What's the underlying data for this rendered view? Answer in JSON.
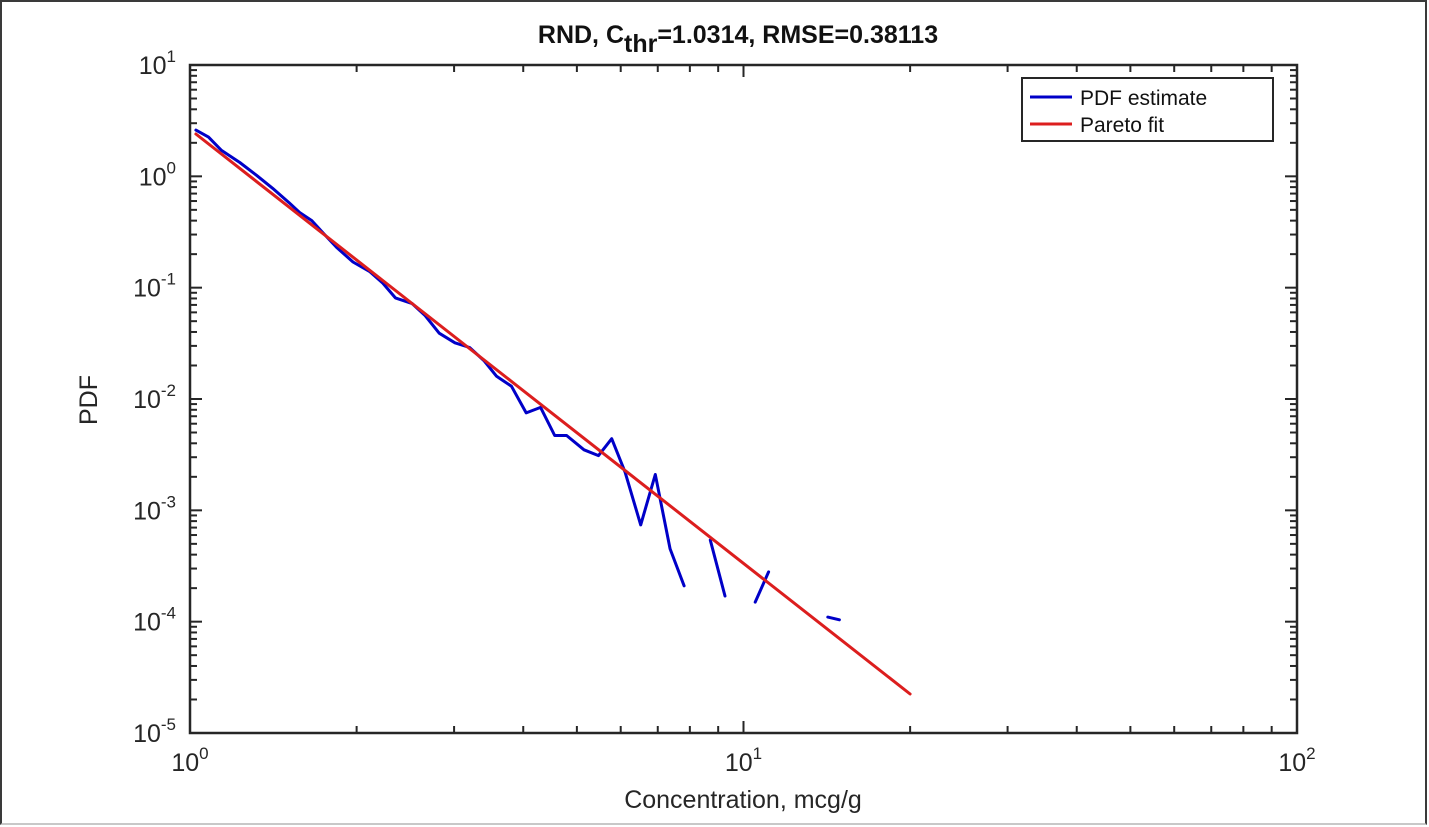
{
  "figure": {
    "title_main": "RND, C",
    "title_sub": "thr",
    "title_rest": "=1.0314, RMSE=0.38113",
    "xlabel": "Concentration, mcg/g",
    "ylabel": "PDF",
    "colors": {
      "pdf_estimate": "#0000c8",
      "pareto_fit": "#dc1e1e",
      "axis": "#262626"
    }
  },
  "chart_data": {
    "type": "line",
    "title": "RND, C_thr=1.0314, RMSE=0.38113",
    "xlabel": "Concentration, mcg/g",
    "ylabel": "PDF",
    "xscale": "log",
    "yscale": "log",
    "xlim": [
      1,
      100
    ],
    "ylim": [
      1e-05,
      10
    ],
    "grid": false,
    "legend_position": "northeast",
    "x_ticks": [
      {
        "base": "10",
        "exp": "0",
        "value": 1
      },
      {
        "base": "10",
        "exp": "1",
        "value": 10
      },
      {
        "base": "10",
        "exp": "2",
        "value": 100
      }
    ],
    "y_ticks": [
      {
        "base": "10",
        "exp": "1",
        "value": 10
      },
      {
        "base": "10",
        "exp": "0",
        "value": 1
      },
      {
        "base": "10",
        "exp": "-1",
        "value": 0.1
      },
      {
        "base": "10",
        "exp": "-2",
        "value": 0.01
      },
      {
        "base": "10",
        "exp": "-3",
        "value": 0.001
      },
      {
        "base": "10",
        "exp": "-4",
        "value": 0.0001
      },
      {
        "base": "10",
        "exp": "-5",
        "value": 1e-05
      }
    ],
    "series": [
      {
        "name": "PDF estimate",
        "color": "#0000c8",
        "segments": [
          [
            [
              1.025,
              2.6
            ],
            [
              1.08,
              2.25
            ],
            [
              1.14,
              1.71
            ],
            [
              1.23,
              1.33
            ],
            [
              1.32,
              1.02
            ],
            [
              1.41,
              0.78
            ],
            [
              1.51,
              0.58
            ],
            [
              1.58,
              0.47
            ],
            [
              1.66,
              0.4
            ],
            [
              1.75,
              0.3
            ],
            [
              1.84,
              0.23
            ],
            [
              1.97,
              0.17
            ],
            [
              2.11,
              0.14
            ],
            [
              2.23,
              0.11
            ],
            [
              2.35,
              0.081
            ],
            [
              2.52,
              0.072
            ],
            [
              2.66,
              0.056
            ],
            [
              2.82,
              0.039
            ],
            [
              3.01,
              0.032
            ],
            [
              3.2,
              0.029
            ],
            [
              3.4,
              0.022
            ],
            [
              3.58,
              0.016
            ],
            [
              3.81,
              0.013
            ],
            [
              4.05,
              0.0075
            ],
            [
              4.3,
              0.0084
            ],
            [
              4.56,
              0.0047
            ],
            [
              4.79,
              0.0047
            ],
            [
              5.15,
              0.0035
            ],
            [
              5.47,
              0.0031
            ],
            [
              5.78,
              0.0044
            ],
            [
              6.11,
              0.0022
            ],
            [
              6.52,
              0.00074
            ],
            [
              6.93,
              0.0021
            ],
            [
              7.37,
              0.00045
            ],
            [
              7.81,
              0.00021
            ]
          ],
          [
            [
              8.71,
              0.00054
            ],
            [
              9.26,
              0.00017
            ]
          ],
          [
            [
              10.5,
              0.00015
            ],
            [
              11.1,
              0.00028
            ]
          ],
          [
            [
              14.2,
              0.00011
            ],
            [
              14.9,
              0.000104
            ]
          ]
        ]
      },
      {
        "name": "Pareto fit",
        "color": "#dc1e1e",
        "segments": [
          [
            [
              1.025,
              2.4
            ],
            [
              20.0,
              2.24e-05
            ]
          ]
        ]
      }
    ]
  },
  "legend": {
    "items": [
      {
        "label": "PDF estimate",
        "color": "#0000c8"
      },
      {
        "label": "Pareto fit",
        "color": "#dc1e1e"
      }
    ]
  }
}
